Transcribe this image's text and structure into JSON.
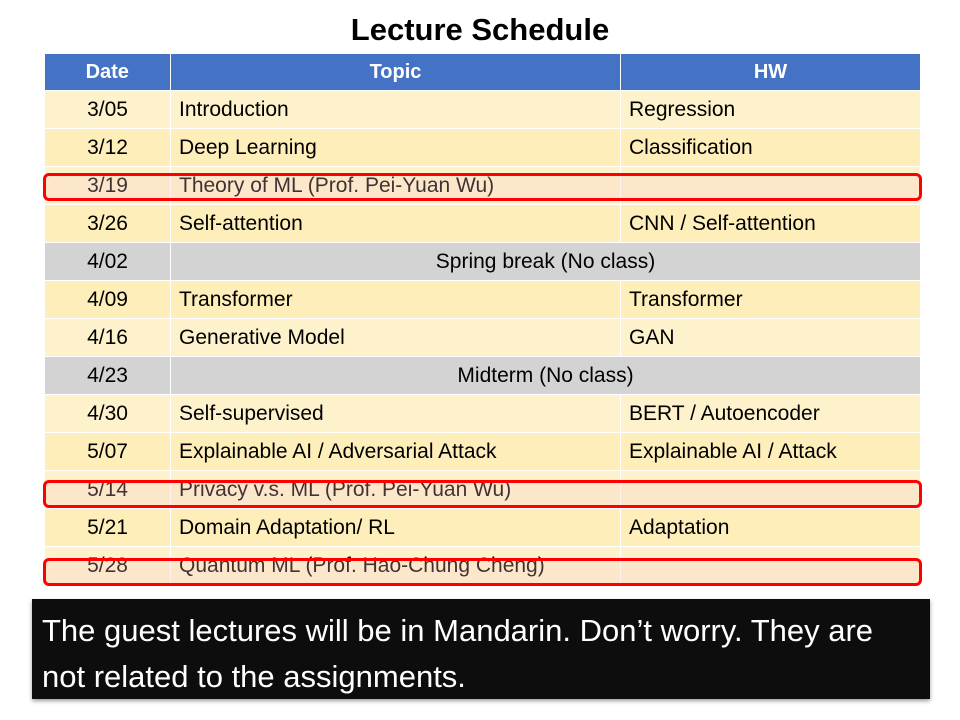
{
  "title": "Lecture Schedule",
  "headers": {
    "date": "Date",
    "topic": "Topic",
    "hw": "HW"
  },
  "rows": [
    {
      "date": "3/05",
      "topic": "Introduction",
      "hw": "Regression"
    },
    {
      "date": "3/12",
      "topic": "Deep Learning",
      "hw": "Classification"
    },
    {
      "date": "3/19",
      "topic": "Theory of ML (Prof. Pei-Yuan Wu)",
      "hw": ""
    },
    {
      "date": "3/26",
      "topic": "Self-attention",
      "hw": "CNN / Self-attention"
    },
    {
      "date": "4/02",
      "note": "Spring break (No class)"
    },
    {
      "date": "4/09",
      "topic": "Transformer",
      "hw": "Transformer"
    },
    {
      "date": "4/16",
      "topic": "Generative Model",
      "hw": "GAN"
    },
    {
      "date": "4/23",
      "note": "Midterm (No class)"
    },
    {
      "date": "4/30",
      "topic": "Self-supervised",
      "hw": "BERT / Autoencoder"
    },
    {
      "date": "5/07",
      "topic": "Explainable AI / Adversarial Attack",
      "hw": "Explainable AI / Attack"
    },
    {
      "date": "5/14",
      "topic": "Privacy v.s. ML (Prof. Pei-Yuan Wu)",
      "hw": ""
    },
    {
      "date": "5/21",
      "topic": "Domain Adaptation/ RL",
      "hw": "Adaptation"
    },
    {
      "date": "5/28",
      "topic": "Quantum ML (Prof. Hao-Chung Cheng)",
      "hw": ""
    }
  ],
  "highlight_color": "#ff0000",
  "header_color": "#4472c4",
  "no_class_color": "#d3d3d3",
  "caption": "The guest lectures will be in Mandarin. Don’t worry. They are not related to the assignments."
}
